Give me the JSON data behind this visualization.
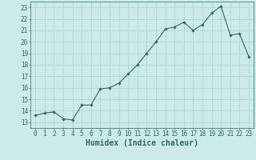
{
  "x": [
    0,
    1,
    2,
    3,
    4,
    5,
    6,
    7,
    8,
    9,
    10,
    11,
    12,
    13,
    14,
    15,
    16,
    17,
    18,
    19,
    20,
    21,
    22,
    23
  ],
  "y": [
    13.6,
    13.8,
    13.9,
    13.3,
    13.2,
    14.5,
    14.5,
    15.9,
    16.0,
    16.4,
    17.2,
    18.0,
    19.0,
    20.0,
    21.1,
    21.3,
    21.7,
    21.0,
    21.5,
    22.5,
    23.1,
    20.6,
    20.7,
    18.7
  ],
  "line_color": "#2e6b5e",
  "marker": "D",
  "marker_size": 1.8,
  "bg_color": "#cceae7",
  "grid_color": "#aad4d0",
  "xlabel": "Humidex (Indice chaleur)",
  "xlabel_fontsize": 7,
  "xlabel_bold": true,
  "xlim": [
    -0.5,
    23.5
  ],
  "ylim": [
    12.5,
    23.5
  ],
  "yticks": [
    13,
    14,
    15,
    16,
    17,
    18,
    19,
    20,
    21,
    22,
    23
  ],
  "xticks": [
    0,
    1,
    2,
    3,
    4,
    5,
    6,
    7,
    8,
    9,
    10,
    11,
    12,
    13,
    14,
    15,
    16,
    17,
    18,
    19,
    20,
    21,
    22,
    23
  ],
  "tick_fontsize": 5.5,
  "tick_color": "#2e6b5e",
  "spine_color": "#2e6b5e"
}
